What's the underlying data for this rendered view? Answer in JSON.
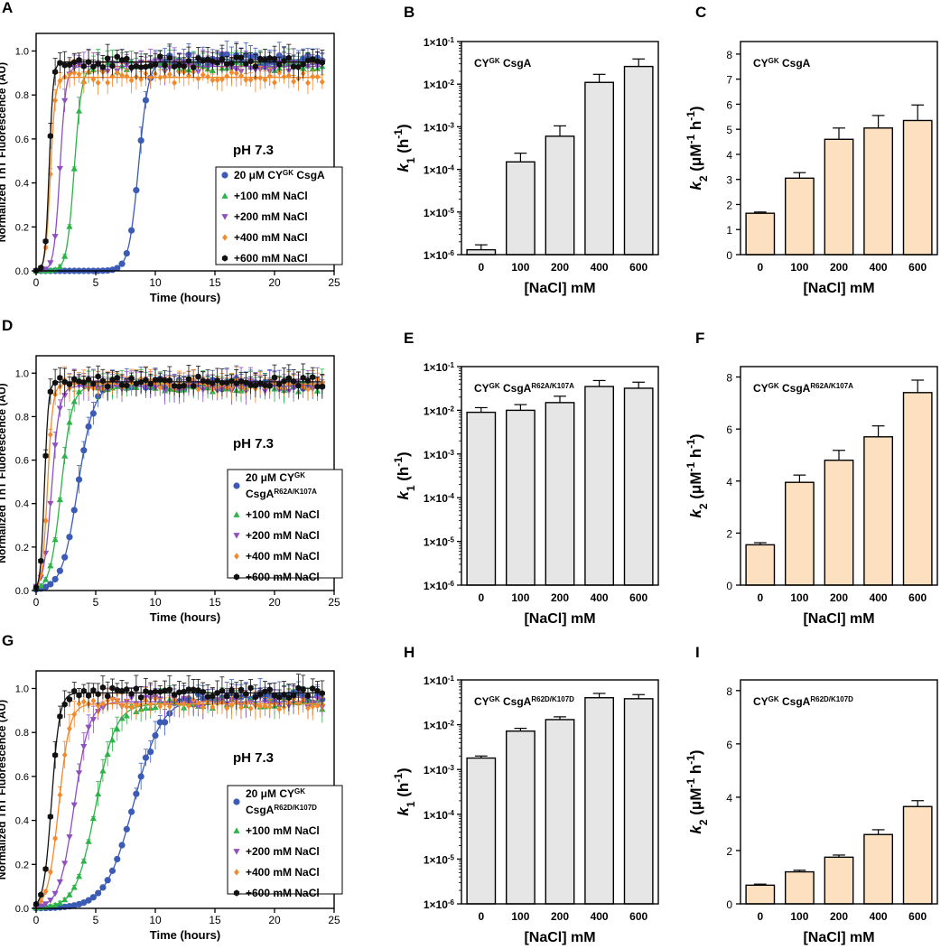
{
  "colors": {
    "salt_series": [
      "#3b5bb5",
      "#2eb24a",
      "#8e4fbf",
      "#f2892a",
      "#111111"
    ],
    "k1_bar": "#e6e6e6",
    "k2_bar": "#fce0c0",
    "axis": "#000000"
  },
  "chart_data": [
    {
      "panel": "A",
      "type": "line",
      "title": "pH 7.3",
      "xlabel": "Time (hours)",
      "ylabel": "Normalized ThT Fluorescence (AU)",
      "xlim": [
        0,
        25
      ],
      "ylim": [
        0,
        1.08
      ],
      "xticks": [
        "0",
        "5",
        "10",
        "15",
        "20",
        "25"
      ],
      "yticks": [
        "0.0",
        "0.2",
        "0.4",
        "0.6",
        "0.8",
        "1.0"
      ],
      "legend_position": "bottom-right",
      "legend": [
        {
          "lines": [
            [
              "20 μM CY",
              "GK",
              " CsgA"
            ]
          ]
        },
        {
          "lines": [
            [
              "+100 mM NaCl"
            ]
          ]
        },
        {
          "lines": [
            [
              "+200 mM NaCl"
            ]
          ]
        },
        {
          "lines": [
            [
              "+400 mM NaCl"
            ]
          ]
        },
        {
          "lines": [
            [
              "+600 mM NaCl"
            ]
          ]
        }
      ],
      "series": [
        {
          "name": "20 μM CYGK CsgA",
          "marker": "circle",
          "t_half": 8.6,
          "k": 2.4,
          "plateau": 0.96
        },
        {
          "name": "+100 mM NaCl",
          "marker": "triangle-up",
          "t_half": 3.2,
          "k": 3.2,
          "plateau": 0.93
        },
        {
          "name": "+200 mM NaCl",
          "marker": "triangle-down",
          "t_half": 2.0,
          "k": 4.0,
          "plateau": 0.93
        },
        {
          "name": "+400 mM NaCl",
          "marker": "diamond",
          "t_half": 1.2,
          "k": 5.0,
          "plateau": 0.88
        },
        {
          "name": "+600 mM NaCl",
          "marker": "hexagon",
          "t_half": 1.1,
          "k": 6.0,
          "plateau": 0.95
        }
      ]
    },
    {
      "panel": "B",
      "type": "bar",
      "scale": "log",
      "annotation": [
        "CY",
        "GK",
        " CsgA"
      ],
      "categories": [
        "0",
        "100",
        "200",
        "400",
        "600"
      ],
      "values": [
        1.3e-06,
        0.00015,
        0.0006,
        0.011,
        0.026
      ],
      "errors_upper": [
        1.7e-06,
        0.00024,
        0.00105,
        0.017,
        0.039
      ],
      "xlabel": "[NaCl] mM",
      "ylabel_parts": [
        "k",
        "1",
        " (h",
        "-1",
        ")"
      ],
      "ylim_exp": [
        -6,
        -1
      ]
    },
    {
      "panel": "C",
      "type": "bar",
      "annotation": [
        "CY",
        "GK",
        " CsgA"
      ],
      "categories": [
        "0",
        "100",
        "200",
        "400",
        "600"
      ],
      "values": [
        1.65,
        3.05,
        4.6,
        5.05,
        5.35
      ],
      "errors": [
        0.05,
        0.22,
        0.45,
        0.5,
        0.62
      ],
      "xlabel": "[NaCl] mM",
      "ylabel_parts": [
        "k",
        "2",
        " (μM",
        "-1",
        " h",
        "-1",
        ")"
      ],
      "ylim": [
        0,
        8.5
      ],
      "yticks": [
        "0",
        "1",
        "2",
        "3",
        "4",
        "5",
        "6",
        "7",
        "8"
      ]
    },
    {
      "panel": "D",
      "type": "line",
      "title": "pH 7.3",
      "xlabel": "Time (hours)",
      "ylabel": "Normalized ThT Fluorescence (AU)",
      "xlim": [
        0,
        25
      ],
      "ylim": [
        0,
        1.08
      ],
      "xticks": [
        "0",
        "5",
        "10",
        "15",
        "20",
        "25"
      ],
      "yticks": [
        "0.0",
        "0.2",
        "0.4",
        "0.6",
        "0.8",
        "1.0"
      ],
      "legend_position": "bottom-right",
      "legend": [
        {
          "lines": [
            [
              "20 μM CY",
              "GK",
              ""
            ],
            [
              "CsgA",
              "R62A/K107A",
              ""
            ]
          ]
        },
        {
          "lines": [
            [
              "+100 mM NaCl"
            ]
          ]
        },
        {
          "lines": [
            [
              "+200 mM NaCl"
            ]
          ]
        },
        {
          "lines": [
            [
              "+400 mM NaCl"
            ]
          ]
        },
        {
          "lines": [
            [
              "+600 mM NaCl"
            ]
          ]
        }
      ],
      "series": [
        {
          "name": "20 μM CYGK CsgAR62A/K107A",
          "marker": "circle",
          "t_half": 3.5,
          "k": 1.5,
          "plateau": 0.95
        },
        {
          "name": "+100 mM NaCl",
          "marker": "triangle-up",
          "t_half": 2.1,
          "k": 2.2,
          "plateau": 0.94
        },
        {
          "name": "+200 mM NaCl",
          "marker": "triangle-down",
          "t_half": 1.3,
          "k": 3.0,
          "plateau": 0.94
        },
        {
          "name": "+400 mM NaCl",
          "marker": "diamond",
          "t_half": 0.95,
          "k": 4.5,
          "plateau": 0.95
        },
        {
          "name": "+600 mM NaCl",
          "marker": "hexagon",
          "t_half": 0.7,
          "k": 6.0,
          "plateau": 0.96
        }
      ]
    },
    {
      "panel": "E",
      "type": "bar",
      "scale": "log",
      "annotation": [
        "CY",
        "GK",
        " CsgA",
        "R62A/K107A"
      ],
      "categories": [
        "0",
        "100",
        "200",
        "400",
        "600"
      ],
      "values": [
        0.009,
        0.01,
        0.015,
        0.035,
        0.032
      ],
      "errors_upper": [
        0.0115,
        0.0135,
        0.021,
        0.048,
        0.044
      ],
      "xlabel": "[NaCl] mM",
      "ylabel_parts": [
        "k",
        "1",
        " (h",
        "-1",
        ")"
      ],
      "ylim_exp": [
        -6,
        -1
      ]
    },
    {
      "panel": "F",
      "type": "bar",
      "annotation": [
        "CY",
        "GK",
        " CsgA",
        "R62A/K107A"
      ],
      "categories": [
        "0",
        "100",
        "200",
        "400",
        "600"
      ],
      "values": [
        1.55,
        3.95,
        4.8,
        5.7,
        7.4
      ],
      "errors": [
        0.08,
        0.28,
        0.38,
        0.42,
        0.48
      ],
      "xlabel": "[NaCl] mM",
      "ylabel_parts": [
        "k",
        "2",
        " (μM",
        "-1",
        " h",
        "-1",
        ")"
      ],
      "ylim": [
        0,
        8.4
      ],
      "yticks": [
        "0",
        "2",
        "4",
        "6",
        "8"
      ]
    },
    {
      "panel": "G",
      "type": "line",
      "title": "pH 7.3",
      "xlabel": "Time (hours)",
      "ylabel": "Normalized ThT Fluorescence (AU)",
      "xlim": [
        0,
        25
      ],
      "ylim": [
        0,
        1.08
      ],
      "xticks": [
        "0",
        "5",
        "10",
        "15",
        "20",
        "25"
      ],
      "yticks": [
        "0.0",
        "0.2",
        "0.4",
        "0.6",
        "0.8",
        "1.0"
      ],
      "legend_position": "bottom-right",
      "legend": [
        {
          "lines": [
            [
              "20 μM CY",
              "GK",
              ""
            ],
            [
              "CsgA",
              "R62D/K107D",
              ""
            ]
          ]
        },
        {
          "lines": [
            [
              "+100 mM NaCl"
            ]
          ]
        },
        {
          "lines": [
            [
              "+200 mM NaCl"
            ]
          ]
        },
        {
          "lines": [
            [
              "+400 mM NaCl"
            ]
          ]
        },
        {
          "lines": [
            [
              "+600 mM NaCl"
            ]
          ]
        }
      ],
      "series": [
        {
          "name": "20 μM CYGK CsgAR62D/K107D",
          "marker": "circle",
          "t_half": 8.2,
          "k": 0.85,
          "plateau": 0.96
        },
        {
          "name": "+100 mM NaCl",
          "marker": "triangle-up",
          "t_half": 5.0,
          "k": 1.2,
          "plateau": 0.93
        },
        {
          "name": "+200 mM NaCl",
          "marker": "triangle-down",
          "t_half": 3.2,
          "k": 1.6,
          "plateau": 0.94
        },
        {
          "name": "+400 mM NaCl",
          "marker": "diamond",
          "t_half": 1.9,
          "k": 2.2,
          "plateau": 0.93
        },
        {
          "name": "+600 mM NaCl",
          "marker": "hexagon",
          "t_half": 1.3,
          "k": 3.0,
          "plateau": 0.98
        }
      ]
    },
    {
      "panel": "H",
      "type": "bar",
      "scale": "log",
      "annotation": [
        "CY",
        "GK",
        " CsgA",
        "R62D/K107D"
      ],
      "categories": [
        "0",
        "100",
        "200",
        "400",
        "600"
      ],
      "values": [
        0.0018,
        0.0072,
        0.013,
        0.04,
        0.038
      ],
      "errors_upper": [
        0.002,
        0.0083,
        0.015,
        0.05,
        0.047
      ],
      "xlabel": "[NaCl] mM",
      "ylabel_parts": [
        "k",
        "1",
        " (h",
        "-1",
        ")"
      ],
      "ylim_exp": [
        -6,
        -1
      ]
    },
    {
      "panel": "I",
      "type": "bar",
      "annotation": [
        "CY",
        "GK",
        " CsgA",
        "R62D/K107D"
      ],
      "categories": [
        "0",
        "100",
        "200",
        "400",
        "600"
      ],
      "values": [
        0.7,
        1.2,
        1.75,
        2.6,
        3.65
      ],
      "errors": [
        0.04,
        0.06,
        0.08,
        0.18,
        0.22
      ],
      "xlabel": "[NaCl] mM",
      "ylabel_parts": [
        "k",
        "2",
        " (μM",
        "-1",
        " h",
        "-1",
        ")"
      ],
      "ylim": [
        0,
        8.4
      ],
      "yticks": [
        "0",
        "2",
        "4",
        "6",
        "8"
      ]
    }
  ]
}
